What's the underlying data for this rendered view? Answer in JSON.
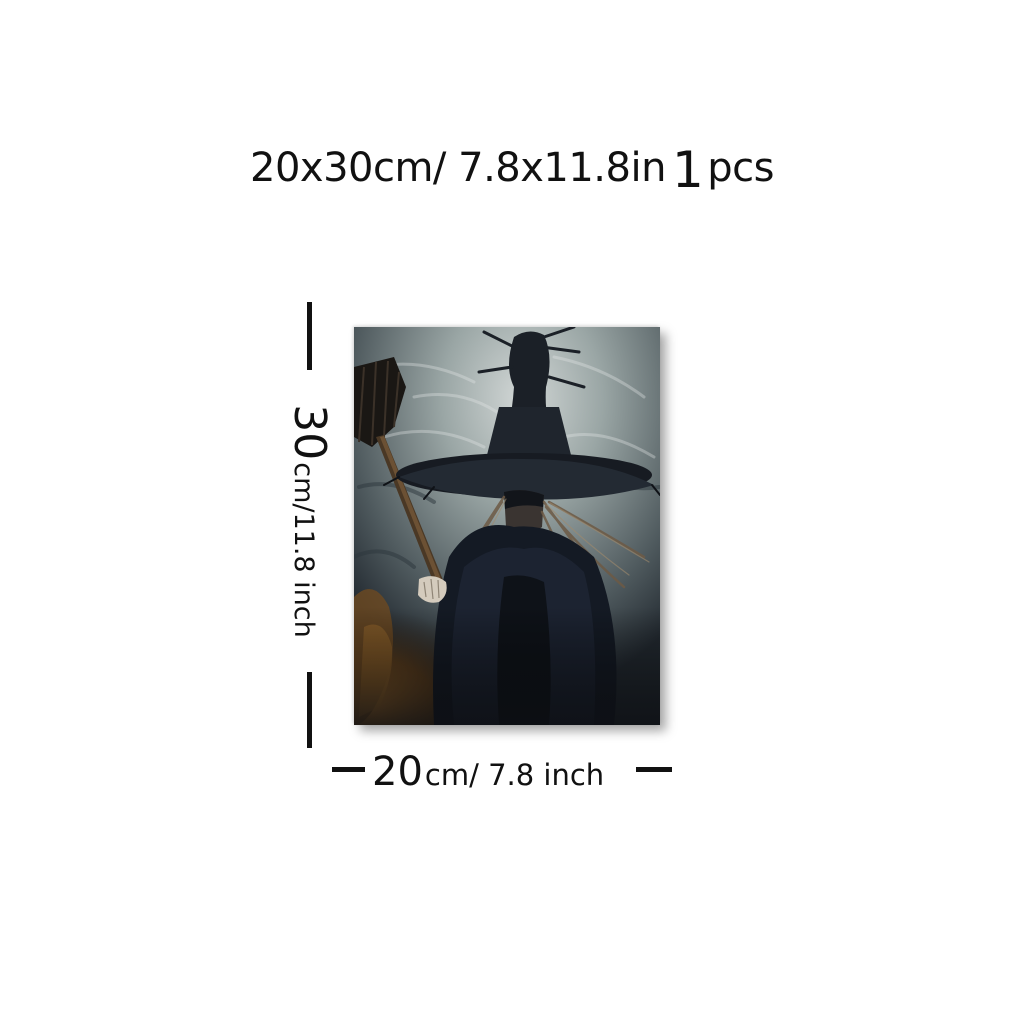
{
  "title": {
    "dimensions": "20x30cm/ 7.8x11.8in",
    "quantity_number": "1",
    "quantity_unit": "pcs"
  },
  "height_dimension": {
    "value": "30",
    "unit_text": "cm/11.8 inch"
  },
  "width_dimension": {
    "value": "20",
    "unit_text": "cm/ 7.8 inch"
  },
  "artwork": {
    "subject": "witch-with-broom-painting",
    "colors": {
      "sky": "#8d9a99",
      "sky_light": "#c9cfcf",
      "shadow": "#14171c",
      "cloak": "#1c2230",
      "glow": "#8a5a24",
      "hair": "#6b5a45",
      "hand": "#d8d0c4"
    }
  }
}
